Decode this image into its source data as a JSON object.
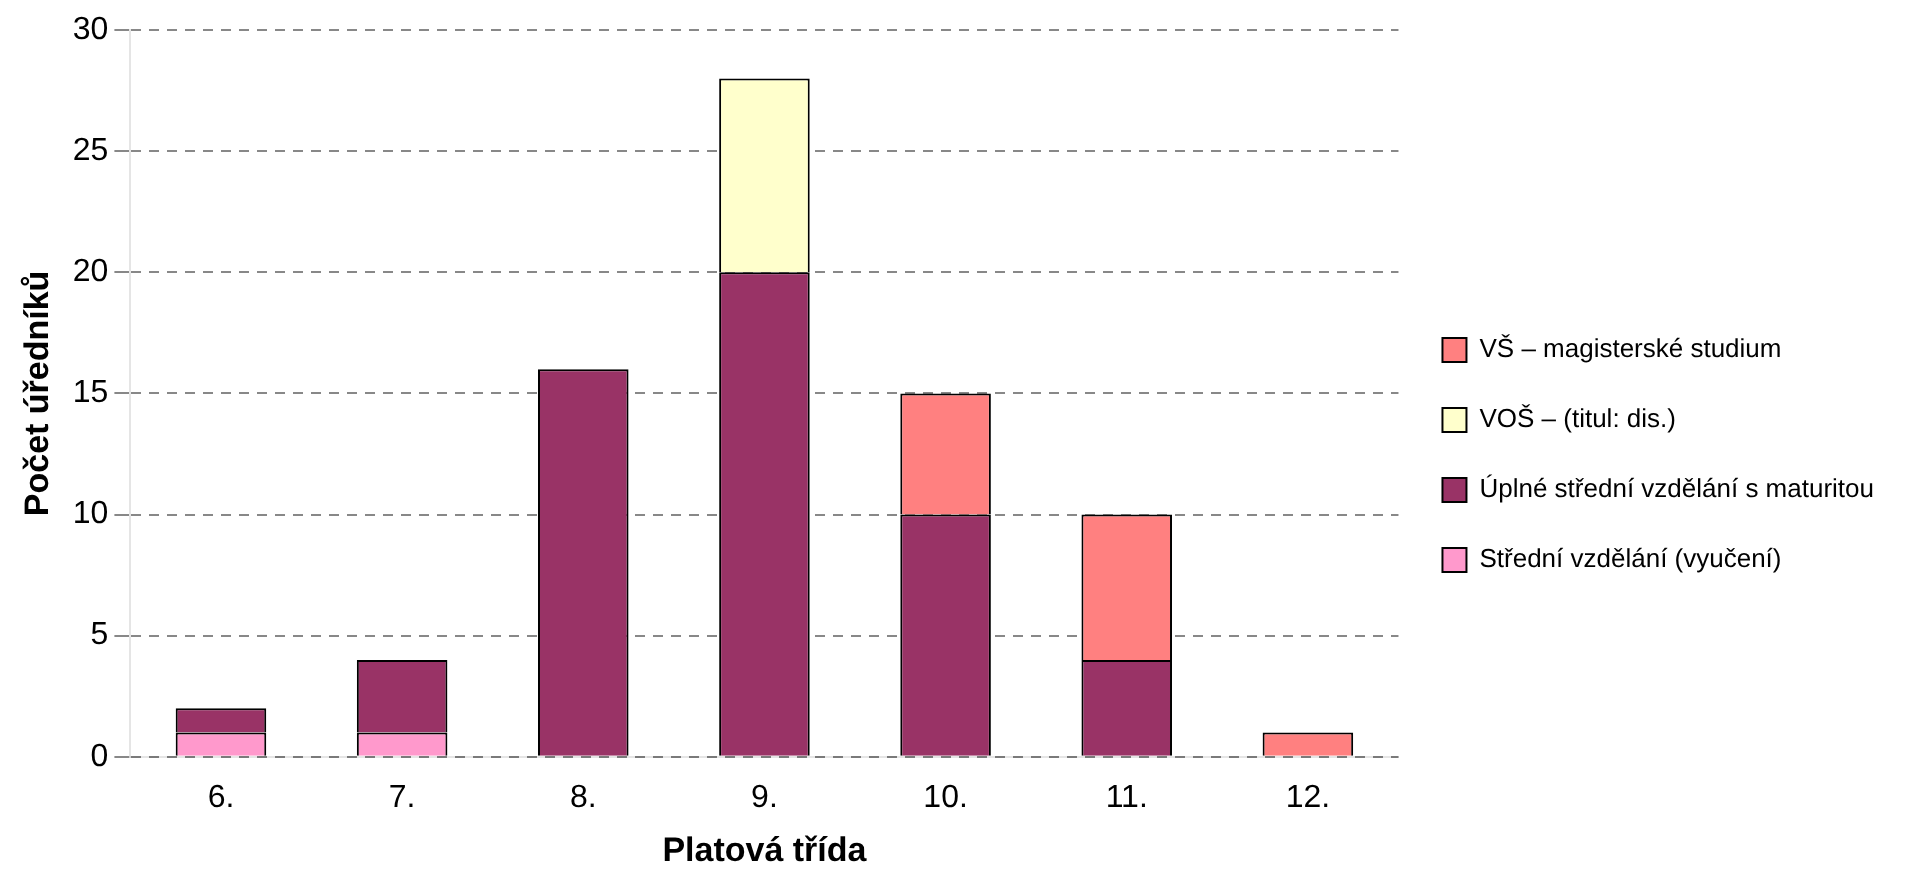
{
  "chart_data": {
    "type": "bar",
    "stacked": true,
    "xlabel": "Platová třída",
    "ylabel": "Počet úředníků",
    "categories": [
      "6.",
      "7.",
      "8.",
      "9.",
      "10.",
      "11.",
      "12."
    ],
    "series": [
      {
        "name": "Střední vzdělání (vyučení)",
        "color": "#ff99cc",
        "values": [
          1,
          1,
          0,
          0,
          0,
          0,
          0
        ]
      },
      {
        "name": "Úplné střední vzdělání s maturitou",
        "color": "#993366",
        "values": [
          1,
          3,
          16,
          20,
          10,
          4,
          0
        ]
      },
      {
        "name": "VOŠ – (titul: dis.)",
        "color": "#ffffcc",
        "values": [
          0,
          0,
          0,
          8,
          0,
          0,
          0
        ]
      },
      {
        "name": "VŠ – magisterské studium",
        "color": "#ff8080",
        "values": [
          0,
          0,
          0,
          0,
          5,
          6,
          1
        ]
      }
    ],
    "ylim": [
      0,
      30
    ],
    "yticks": [
      0,
      5,
      10,
      15,
      20,
      25,
      30
    ],
    "grid": "y",
    "legend": "right"
  }
}
